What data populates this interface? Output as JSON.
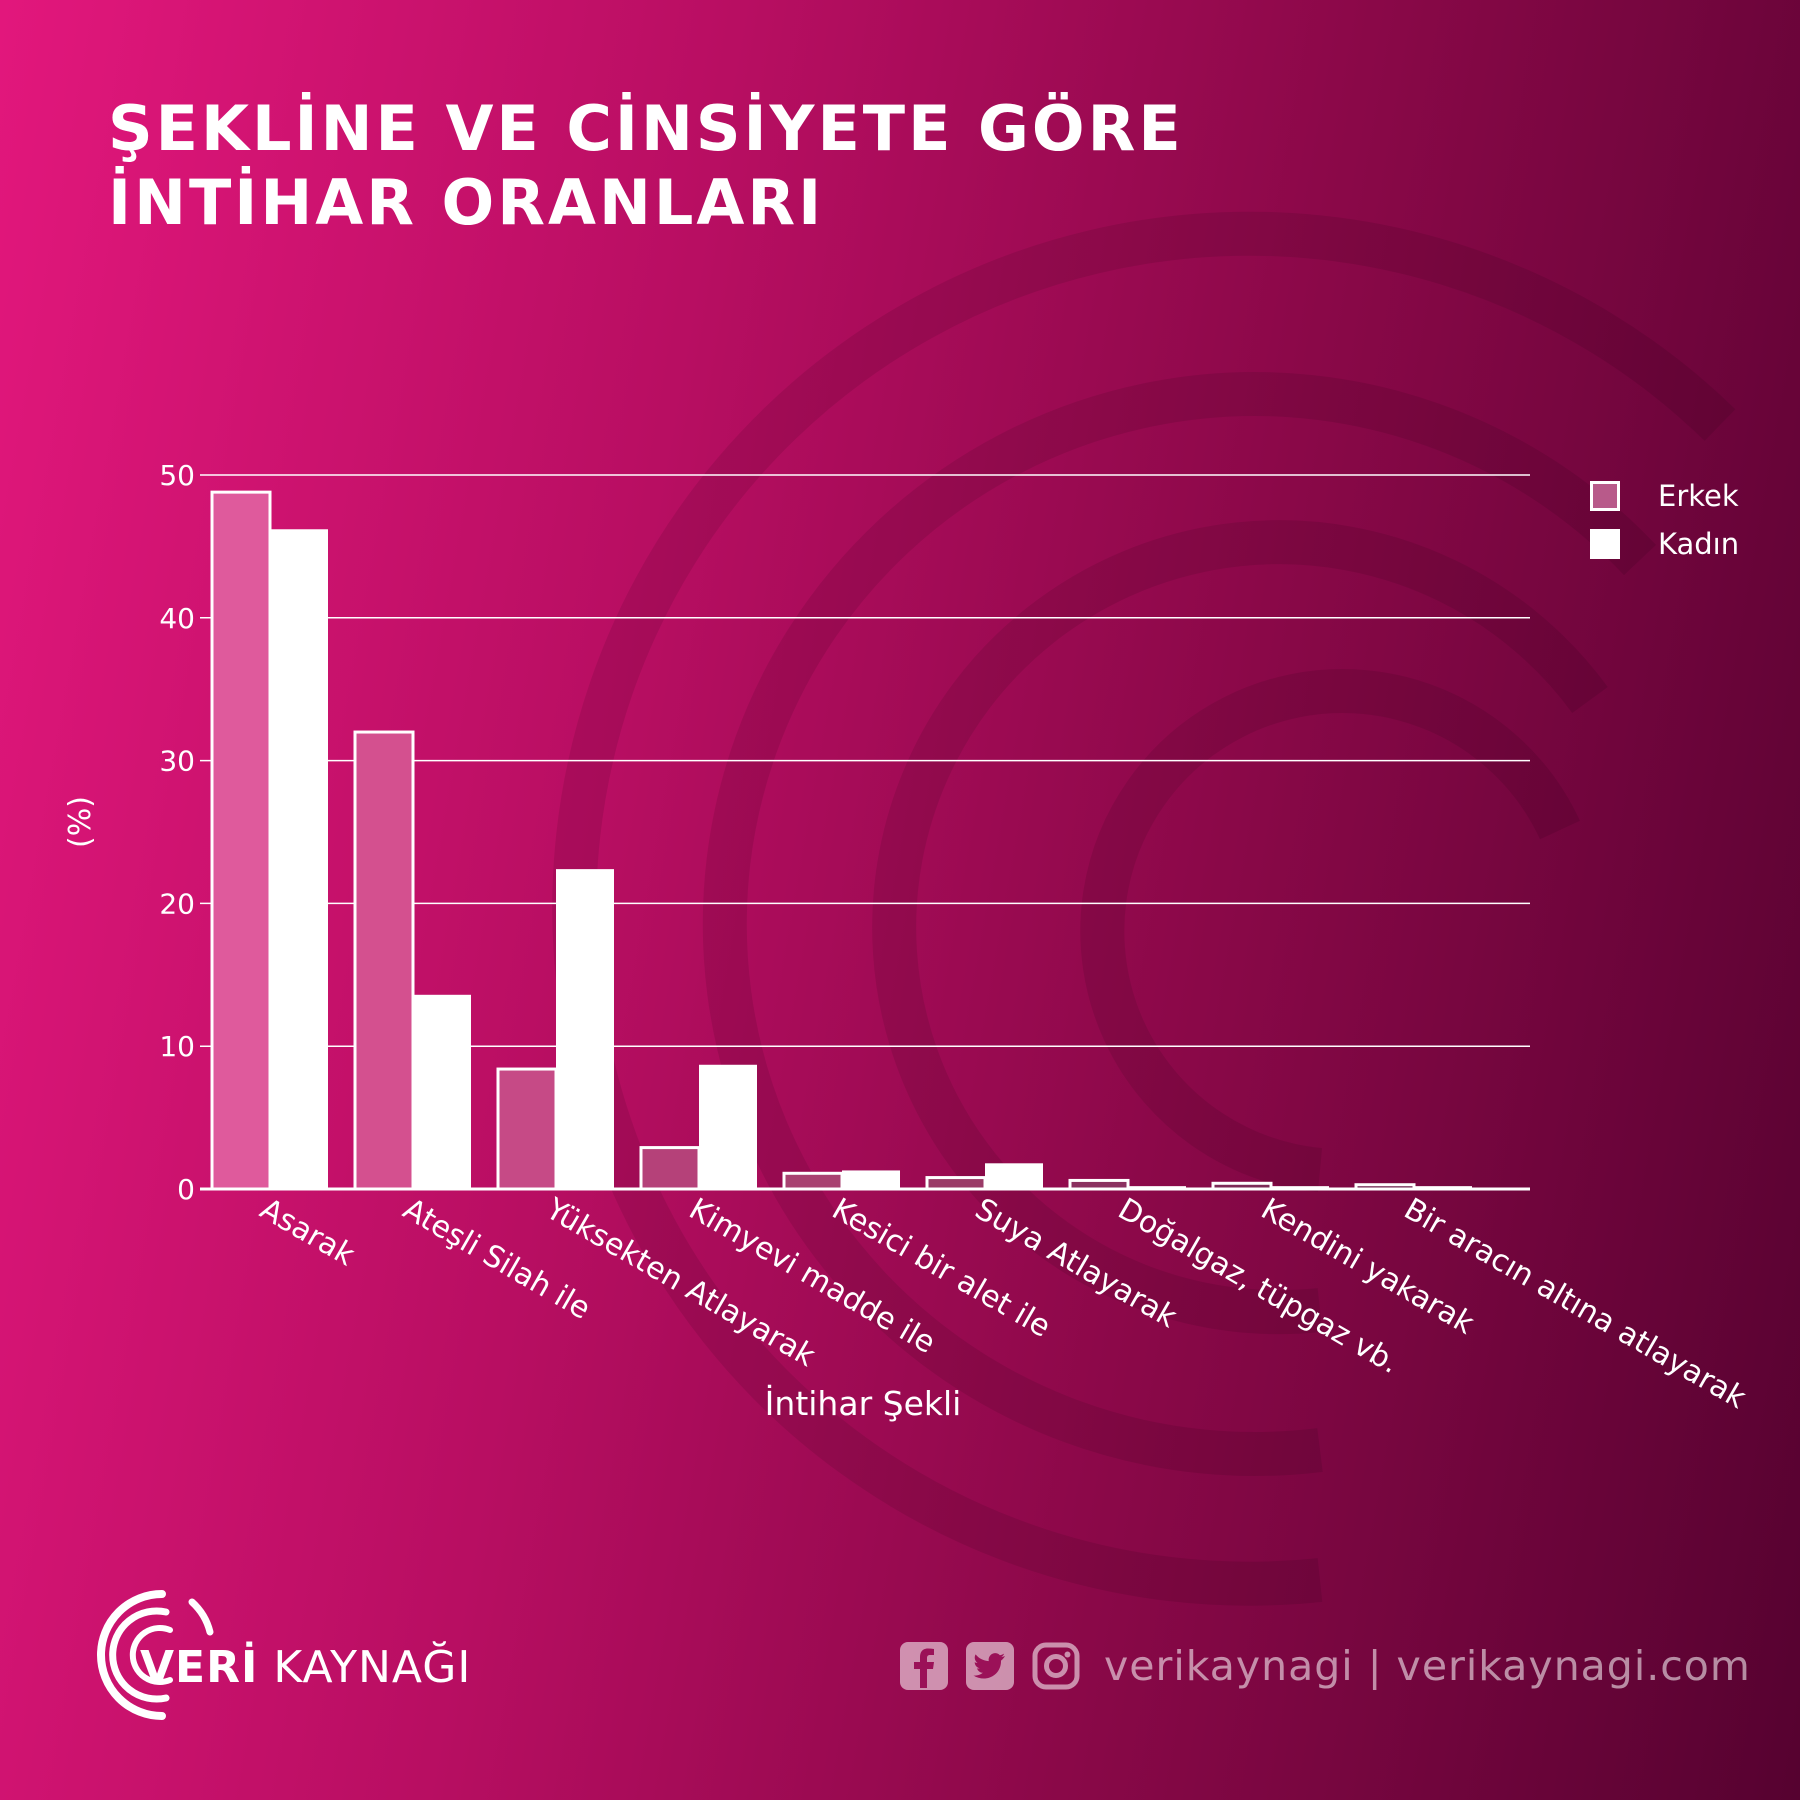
{
  "title_lines": [
    "ŞEKLİNE VE CİNSİYETE GÖRE",
    "İNTİHAR ORANLARI"
  ],
  "colors": {
    "erkek": "#d4508f",
    "kadin": "#ffffff",
    "gridline": "#ffffff"
  },
  "chart_data": {
    "type": "bar",
    "categories": [
      "Asarak",
      "Ateşli Silah ile",
      "Yüksekten Atlayarak",
      "Kimyevi madde ile",
      "Kesici bir alet ile",
      "Suya Atlayarak",
      "Doğalgaz, tüpgaz vb.",
      "Kendini yakarak",
      "Bir aracın altına atlayarak"
    ],
    "series": [
      {
        "name": "Erkek",
        "values": [
          48.8,
          32.0,
          8.4,
          2.9,
          1.1,
          0.8,
          0.6,
          0.4,
          0.3
        ]
      },
      {
        "name": "Kadın",
        "values": [
          46.2,
          13.6,
          22.4,
          8.7,
          1.3,
          1.8,
          0.2,
          0.2,
          0.2
        ]
      }
    ],
    "xlabel": "İntihar Şekli",
    "ylabel": "(%)",
    "ylim": [
      0,
      50
    ],
    "yticks": [
      0,
      10,
      20,
      30,
      40,
      50
    ],
    "grid": true,
    "legend": "right"
  },
  "brand": {
    "bold": "VERİ",
    "light": " KAYNAĞI"
  },
  "social": {
    "icons": [
      "facebook-icon",
      "twitter-icon",
      "instagram-icon"
    ],
    "text": "verikaynagi | verikaynagi.com"
  }
}
